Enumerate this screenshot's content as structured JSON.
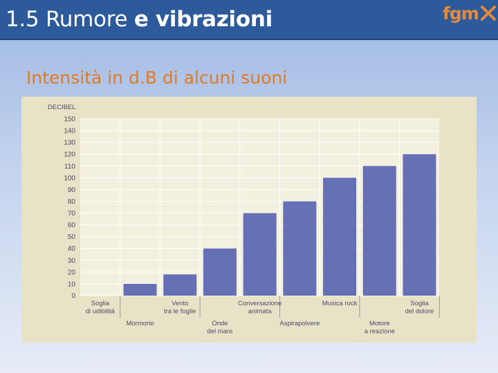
{
  "slide": {
    "title_regular": "1.5 Rumore ",
    "title_bold": "e vibrazioni",
    "logo_text": "fgm",
    "subtitle": "Intensità in d.B di alcuni suoni"
  },
  "chart_data": {
    "type": "bar",
    "ylabel": "DECIBEL",
    "ylim": [
      0,
      150
    ],
    "yticks": [
      0,
      10,
      20,
      30,
      40,
      50,
      60,
      70,
      80,
      90,
      100,
      110,
      120,
      130,
      140,
      150
    ],
    "grid": true,
    "categories": [
      [
        "Soglia",
        "di udibilità"
      ],
      [
        "Mormorio"
      ],
      [
        "Vento",
        "tra le foglie"
      ],
      [
        "Onde",
        "del mare"
      ],
      [
        "Conversazione",
        "animata"
      ],
      [
        "Aspirapolvere"
      ],
      [
        "Musica rock"
      ],
      [
        "Motore",
        "a reazione"
      ],
      [
        "Soglia",
        "del dolore"
      ]
    ],
    "values": [
      0,
      10,
      18,
      40,
      70,
      80,
      100,
      110,
      120
    ],
    "colors": {
      "bar": "#6570b5",
      "plot_bg": "#f3f0e0",
      "grid": "#ffffff",
      "panel": "#e8e2c6"
    }
  }
}
